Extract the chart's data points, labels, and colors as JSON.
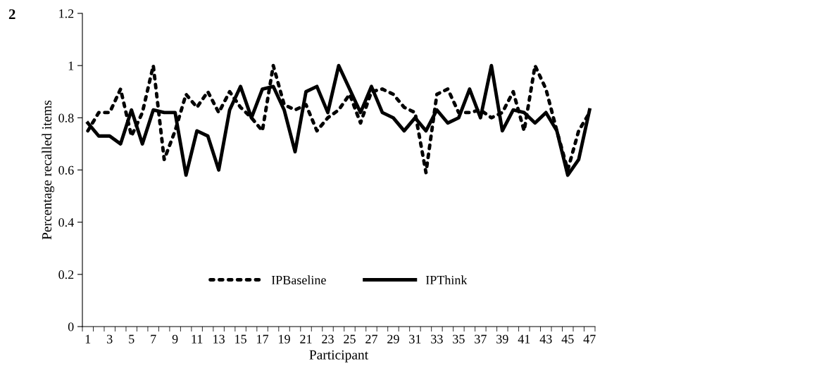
{
  "chart_data": {
    "type": "line",
    "xlabel": "Participant",
    "ylabel": "Percentage recalled items",
    "annotations": [
      "2"
    ],
    "categories": [
      "1",
      null,
      "3",
      null,
      "5",
      null,
      "7",
      null,
      "9",
      null,
      "11",
      null,
      "13",
      null,
      "15",
      null,
      "17",
      null,
      "19",
      null,
      "21",
      null,
      "23",
      null,
      "25",
      null,
      "27",
      null,
      "29",
      null,
      "31",
      null,
      "33",
      null,
      "35",
      null,
      "37",
      null,
      "39",
      null,
      "41",
      null,
      "43",
      null,
      "45",
      null,
      "47"
    ],
    "series": [
      {
        "name": "IPBaseline",
        "color": "#000000",
        "line_style": "dotted",
        "values": [
          0.75,
          0.82,
          0.82,
          0.91,
          0.73,
          0.82,
          1.0,
          0.64,
          0.75,
          0.89,
          0.84,
          0.9,
          0.82,
          0.9,
          0.84,
          0.8,
          0.75,
          1.0,
          0.85,
          0.83,
          0.85,
          0.75,
          0.8,
          0.83,
          0.89,
          0.78,
          0.9,
          0.91,
          0.89,
          0.84,
          0.82,
          0.59,
          0.89,
          0.91,
          0.82,
          0.82,
          0.83,
          0.8,
          0.82,
          0.9,
          0.75,
          1.0,
          0.91,
          0.75,
          0.6,
          0.75,
          0.82
        ]
      },
      {
        "name": "IPThink",
        "color": "#000000",
        "line_style": "solid",
        "values": [
          0.78,
          0.73,
          0.73,
          0.7,
          0.83,
          0.7,
          0.83,
          0.82,
          0.82,
          0.58,
          0.75,
          0.73,
          0.6,
          0.83,
          0.92,
          0.8,
          0.91,
          0.92,
          0.83,
          0.67,
          0.9,
          0.92,
          0.82,
          1.0,
          0.91,
          0.82,
          0.92,
          0.82,
          0.8,
          0.75,
          0.8,
          0.75,
          0.83,
          0.78,
          0.8,
          0.91,
          0.8,
          1.0,
          0.75,
          0.83,
          0.82,
          0.78,
          0.82,
          0.75,
          0.58,
          0.64,
          0.83
        ]
      }
    ],
    "ylim": [
      0,
      1.2
    ],
    "yticks": [
      0,
      0.2,
      0.4,
      0.6,
      0.8,
      1,
      1.2
    ],
    "grid": false,
    "legend": "bottom",
    "marker": "none"
  }
}
